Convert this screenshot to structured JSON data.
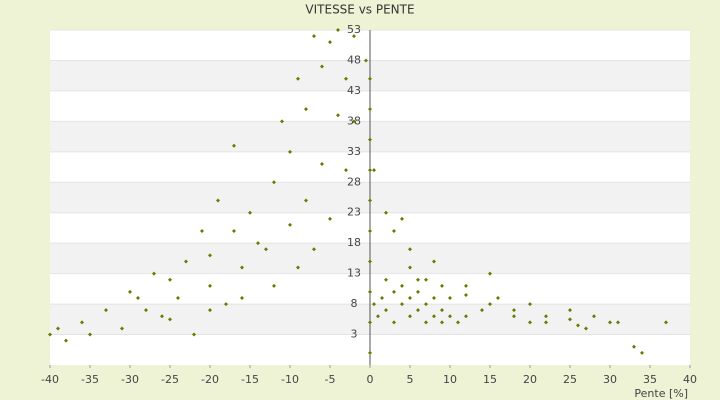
{
  "chart_data": {
    "type": "scatter",
    "title": "VITESSE vs PENTE",
    "x_label": "Pente [%]",
    "color": "#6b7a00",
    "grid": true,
    "xlim": [
      -40,
      40
    ],
    "xticks": [
      -40,
      -35,
      -30,
      -25,
      -20,
      -15,
      -10,
      -5,
      0,
      5,
      10,
      15,
      20,
      25,
      30,
      35,
      40
    ],
    "ylim": [
      -2,
      53
    ],
    "yticks": [
      3,
      8,
      13,
      18,
      23,
      28,
      33,
      38,
      43,
      48,
      53
    ],
    "x": [
      -30,
      -25,
      -20,
      -17,
      -15,
      -12,
      -10,
      -8,
      -6,
      -5,
      -28,
      -24,
      -20,
      -16,
      -13,
      -10,
      -8,
      -6,
      -4,
      -3,
      -25,
      -20,
      -16,
      -12,
      -9,
      -7,
      -5,
      -3,
      -2,
      -40,
      -39,
      -38,
      -36,
      -35,
      -33,
      -31,
      -29,
      -27,
      -26,
      -23,
      -22,
      -21,
      -19,
      -18,
      -17,
      -14,
      -11,
      -9,
      -7,
      -4,
      -2,
      0,
      0,
      0,
      0,
      0,
      0,
      0,
      0,
      0,
      0,
      0.5,
      0.5,
      -0.5,
      1,
      1.5,
      2,
      2,
      3,
      3,
      4,
      4,
      5,
      5,
      6,
      6,
      7,
      7,
      8,
      8,
      9,
      9,
      10,
      11,
      12,
      5,
      7,
      9,
      12,
      15,
      18,
      22,
      25,
      6,
      10,
      14,
      18,
      22,
      26,
      3,
      5,
      8,
      12,
      16,
      20,
      25,
      28,
      2,
      4,
      15,
      27,
      30,
      33,
      34,
      37,
      20,
      31
    ],
    "values": [
      10,
      12,
      16,
      20,
      23,
      28,
      33,
      40,
      47,
      51,
      7,
      9,
      11,
      14,
      17,
      21,
      25,
      31,
      39,
      45,
      5.5,
      7,
      9,
      11,
      14,
      17,
      22,
      30,
      38,
      3,
      4,
      2,
      5,
      3,
      7,
      4,
      9,
      13,
      6,
      15,
      3,
      20,
      25,
      8,
      34,
      18,
      38,
      45,
      52,
      53,
      52,
      0,
      5,
      10,
      15,
      20,
      25,
      30,
      35,
      40,
      45,
      8,
      30,
      48,
      6,
      9,
      12,
      7,
      10,
      5,
      8,
      11,
      6,
      9,
      7,
      10,
      5,
      8,
      6,
      9,
      5,
      7,
      6,
      5,
      6,
      14,
      12,
      11,
      9.5,
      8,
      7,
      6,
      5.5,
      12,
      9,
      7,
      6,
      5,
      4.5,
      20,
      17,
      15,
      11,
      9,
      8,
      7,
      6,
      23,
      22,
      13,
      4,
      5,
      1,
      0,
      5,
      5,
      5
    ]
  }
}
